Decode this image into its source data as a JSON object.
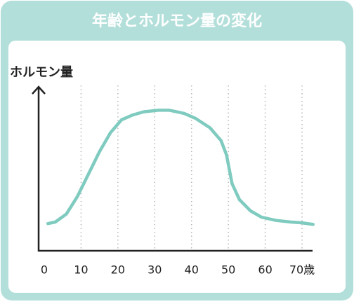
{
  "chart_data": {
    "type": "line",
    "title": "年齢とホルモン量の変化",
    "y_label": "ホルモン量",
    "x": [
      1,
      3,
      6,
      9,
      12,
      15,
      18,
      21,
      24,
      27,
      31,
      34,
      38,
      41,
      45,
      48,
      49.5,
      51,
      53,
      56,
      59,
      63,
      67,
      70,
      73
    ],
    "series": [
      {
        "color": "#7fcbbf",
        "values": [
          17,
          18,
          23,
          34,
          48,
          62,
          74,
          82,
          85,
          87,
          88,
          88,
          86,
          83,
          77,
          69,
          60,
          42,
          32,
          25,
          21,
          19,
          18,
          17.5,
          16.5
        ]
      }
    ],
    "xlim": [
      0,
      70
    ],
    "xticks": [
      0,
      10,
      20,
      30,
      40,
      50,
      60,
      {
        "value": 70,
        "label": "70歳"
      }
    ],
    "ylim": [
      0,
      100
    ],
    "grid": true
  }
}
